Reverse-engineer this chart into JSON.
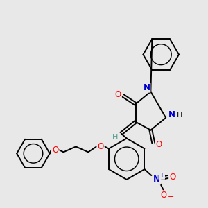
{
  "bg_color": "#e8e8e8",
  "atom_colors": {
    "O": "#ff0000",
    "N": "#0000cc",
    "C": "#000000",
    "H": "#4a9a8a"
  },
  "fig_bg": "#e8e8e8",
  "lw": 1.4
}
